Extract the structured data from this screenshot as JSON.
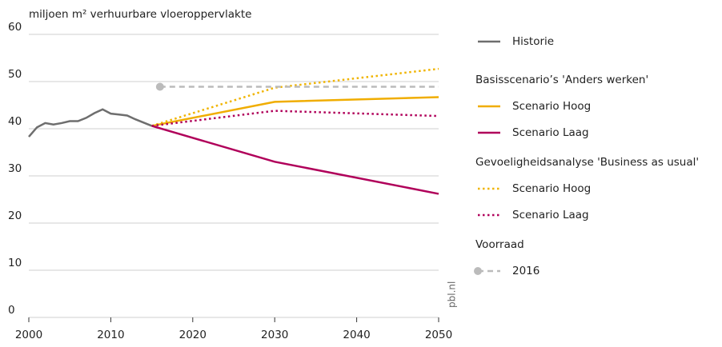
{
  "chart_data": {
    "type": "line",
    "ylabel": "miljoen m² verhuurbare vloeroppervlakte",
    "source_label": "pbl.nl",
    "xlim": [
      2000,
      2050
    ],
    "xticks": [
      2000,
      2010,
      2020,
      2030,
      2040,
      2050
    ],
    "ylim": [
      0,
      60
    ],
    "yticks": [
      0,
      10,
      20,
      30,
      40,
      50,
      60
    ],
    "grid": true,
    "series": [
      {
        "name": "Historie",
        "color": "#6e6e6e",
        "dash": "solid",
        "x": [
          2000,
          2001,
          2002,
          2003,
          2004,
          2005,
          2006,
          2007,
          2008,
          2009,
          2010,
          2011,
          2012,
          2013,
          2014,
          2015
        ],
        "values": [
          38.3,
          40.3,
          41.2,
          40.9,
          41.2,
          41.6,
          41.6,
          42.3,
          43.3,
          44.1,
          43.2,
          43.0,
          42.8,
          42.0,
          41.3,
          40.6
        ]
      },
      {
        "name": "Scenario Hoog",
        "group": "Basisscenario’s 'Anders werken'",
        "color": "#f0ad00",
        "dash": "solid",
        "x": [
          2015,
          2030,
          2050
        ],
        "values": [
          40.6,
          45.7,
          46.7
        ]
      },
      {
        "name": "Scenario Laag",
        "group": "Basisscenario’s 'Anders werken'",
        "color": "#b0005a",
        "dash": "solid",
        "x": [
          2015,
          2030,
          2050
        ],
        "values": [
          40.6,
          33.0,
          26.2
        ]
      },
      {
        "name": "Scenario Hoog",
        "group": "Gevoeligheidsanalyse 'Business as usual'",
        "color": "#f0b400",
        "dash": "dotted",
        "x": [
          2015,
          2030,
          2050
        ],
        "values": [
          40.6,
          48.7,
          52.7
        ]
      },
      {
        "name": "Scenario Laag",
        "group": "Gevoeligheidsanalyse 'Business as usual'",
        "color": "#b0005a",
        "dash": "dotted",
        "x": [
          2015,
          2030,
          2050
        ],
        "values": [
          40.6,
          43.8,
          42.7
        ]
      },
      {
        "name": "2016",
        "group": "Voorraad",
        "color": "#bbbbbb",
        "dash": "dashed",
        "marker": true,
        "x": [
          2016,
          2050
        ],
        "values": [
          48.9,
          48.9
        ]
      }
    ]
  }
}
